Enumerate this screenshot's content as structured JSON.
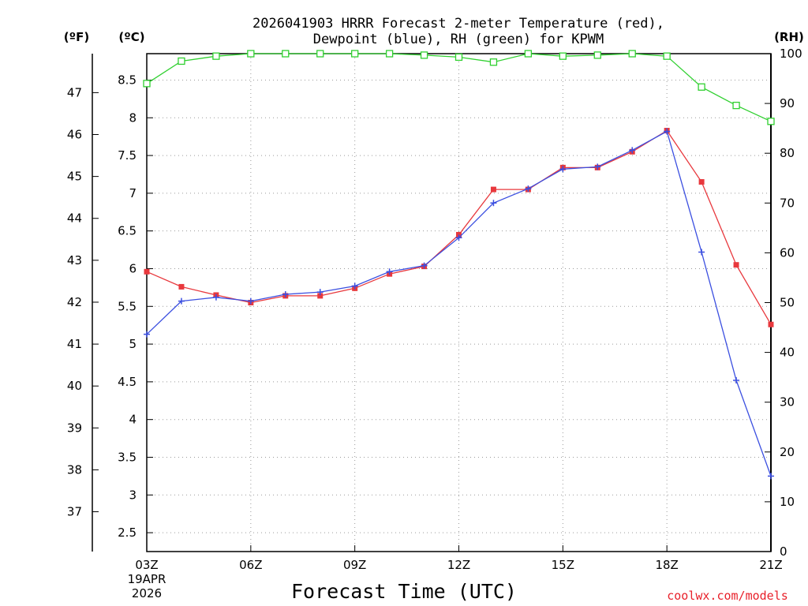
{
  "chart_data": {
    "type": "line",
    "title_line1": "2026041903 HRRR Forecast 2-meter Temperature (red),",
    "title_line2": "Dewpoint (blue), RH (green) for KPWM",
    "xlabel": "Forecast Time (UTC)",
    "credit": "coolwx.com/models",
    "date_label_line1": "19APR",
    "date_label_line2": "2026",
    "left_unit_f": "(ºF)",
    "left_unit_c": "(ºC)",
    "right_unit": "(RH)",
    "x_ticks": [
      "03Z",
      "06Z",
      "09Z",
      "12Z",
      "15Z",
      "18Z",
      "21Z"
    ],
    "x_hours": [
      3,
      4,
      5,
      6,
      7,
      8,
      9,
      10,
      11,
      12,
      13,
      14,
      15,
      16,
      17,
      18,
      19,
      20,
      21
    ],
    "xlim": [
      3,
      21
    ],
    "celsius_ticks": [
      "2.5",
      "3",
      "3.5",
      "4",
      "4.5",
      "5",
      "5.5",
      "6",
      "6.5",
      "7",
      "7.5",
      "8",
      "8.5"
    ],
    "celsius_lim": [
      2.25,
      8.85
    ],
    "fahrenheit_ticks": [
      "37",
      "38",
      "39",
      "40",
      "41",
      "42",
      "43",
      "44",
      "45",
      "46",
      "47"
    ],
    "rh_ticks": [
      "0",
      "10",
      "20",
      "30",
      "40",
      "50",
      "60",
      "70",
      "80",
      "90",
      "100"
    ],
    "rh_lim": [
      0,
      100
    ],
    "series": [
      {
        "name": "Temperature",
        "color": "#e8383d",
        "marker": "square-filled",
        "axis": "celsius",
        "values": [
          5.96,
          5.76,
          5.65,
          5.55,
          5.64,
          5.64,
          5.74,
          5.93,
          6.03,
          6.45,
          7.05,
          7.05,
          7.34,
          7.34,
          7.55,
          7.83,
          7.15,
          6.05,
          5.26
        ]
      },
      {
        "name": "Dewpoint",
        "color": "#3b4fe0",
        "marker": "plus",
        "axis": "celsius",
        "values": [
          5.13,
          5.57,
          5.62,
          5.57,
          5.66,
          5.69,
          5.77,
          5.96,
          6.04,
          6.41,
          6.87,
          7.06,
          7.32,
          7.35,
          7.57,
          7.82,
          6.22,
          4.52,
          3.25
        ]
      },
      {
        "name": "RH",
        "color": "#30d030",
        "marker": "square-open",
        "axis": "rh",
        "values": [
          94,
          98.5,
          99.5,
          100,
          100,
          100,
          100,
          100,
          99.7,
          99.3,
          98.3,
          100,
          99.5,
          99.7,
          100,
          99.5,
          93.3,
          89.6,
          86.4
        ]
      }
    ]
  }
}
